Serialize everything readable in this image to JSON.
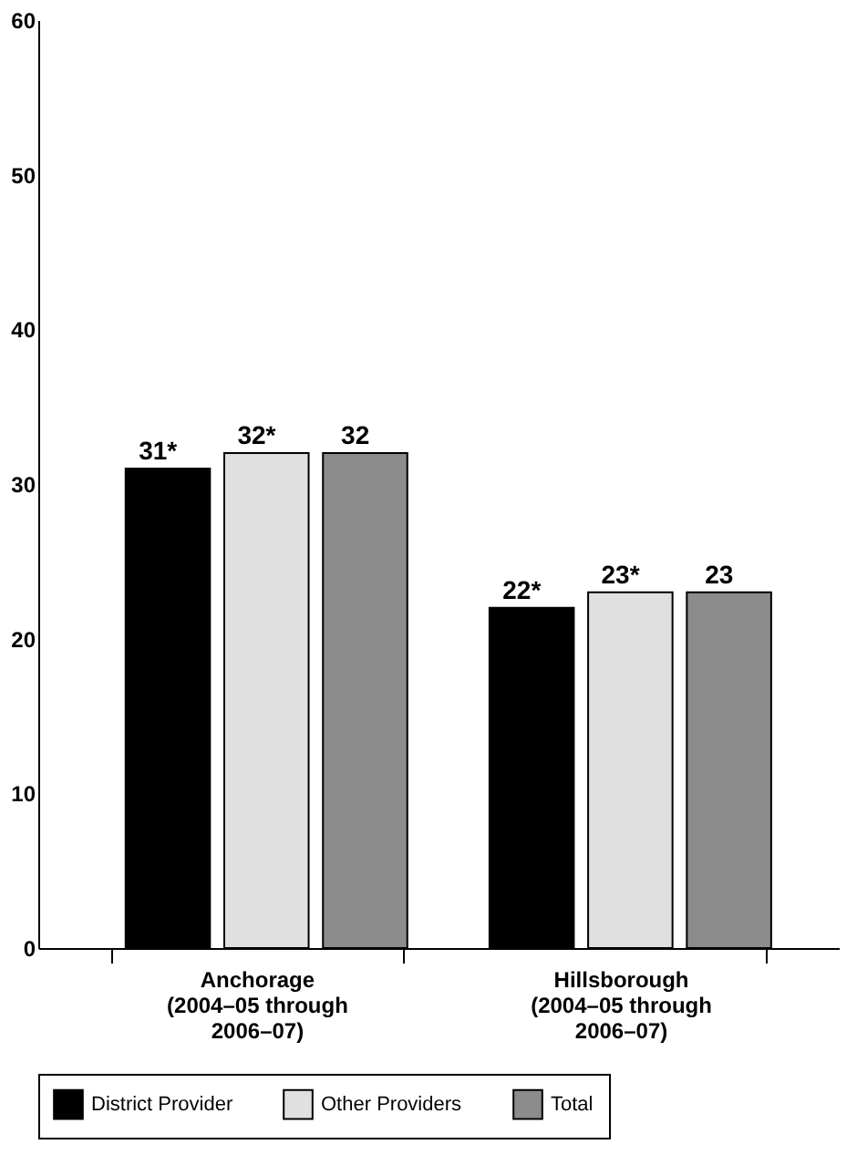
{
  "chart_data": {
    "type": "bar",
    "categories": [
      "Anchorage\n(2004–05 through\n2006–07)",
      "Hillsborough\n(2004–05 through\n2006–07)"
    ],
    "series": [
      {
        "name": "District Provider",
        "color": "#000000",
        "values": [
          31,
          22
        ],
        "value_labels": [
          "31*",
          "22*"
        ]
      },
      {
        "name": "Other Providers",
        "color": "#e0e0e0",
        "values": [
          32,
          23
        ],
        "value_labels": [
          "32*",
          "23*"
        ]
      },
      {
        "name": "Total",
        "color": "#8c8c8c",
        "values": [
          32,
          23
        ],
        "value_labels": [
          "32",
          "23"
        ]
      }
    ],
    "ylim": [
      0,
      60
    ],
    "yticks": [
      0,
      10,
      20,
      30,
      40,
      50,
      60
    ],
    "grid": false,
    "legend": "bottom"
  }
}
